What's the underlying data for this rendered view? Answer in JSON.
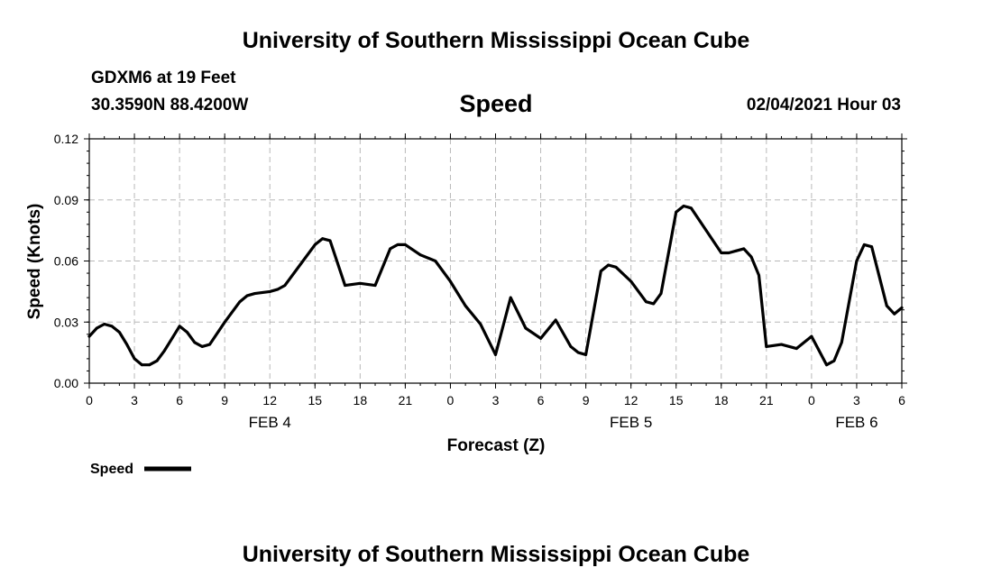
{
  "header": {
    "top_title": "University of Southern Mississippi Ocean Cube",
    "station": "GDXM6 at 19 Feet",
    "location": "30.3590N 88.4200W",
    "parameter": "Speed",
    "datetime": "02/04/2021 Hour 03"
  },
  "footer": {
    "bottom_title": "University of Southern Mississippi Ocean Cube"
  },
  "chart_data": {
    "type": "line",
    "ylabel": "Speed (Knots)",
    "xlabel": "Forecast (Z)",
    "ylim": [
      0,
      0.12
    ],
    "yticks": [
      "0.00",
      "0.03",
      "0.06",
      "0.09",
      "0.12"
    ],
    "xlim": [
      0,
      54
    ],
    "xticks": [
      {
        "hour": 0,
        "label": "0"
      },
      {
        "hour": 3,
        "label": "3"
      },
      {
        "hour": 6,
        "label": "6"
      },
      {
        "hour": 9,
        "label": "9"
      },
      {
        "hour": 12,
        "label": "12"
      },
      {
        "hour": 15,
        "label": "15"
      },
      {
        "hour": 18,
        "label": "18"
      },
      {
        "hour": 21,
        "label": "21"
      },
      {
        "hour": 24,
        "label": "0"
      },
      {
        "hour": 27,
        "label": "3"
      },
      {
        "hour": 30,
        "label": "6"
      },
      {
        "hour": 33,
        "label": "9"
      },
      {
        "hour": 36,
        "label": "12"
      },
      {
        "hour": 39,
        "label": "15"
      },
      {
        "hour": 42,
        "label": "18"
      },
      {
        "hour": 45,
        "label": "21"
      },
      {
        "hour": 48,
        "label": "0"
      },
      {
        "hour": 51,
        "label": "3"
      },
      {
        "hour": 54,
        "label": "6"
      }
    ],
    "date_labels": [
      {
        "hour": 12,
        "label": "FEB 4"
      },
      {
        "hour": 36,
        "label": "FEB 5"
      },
      {
        "hour": 51,
        "label": "FEB 6"
      }
    ],
    "grid": true,
    "legend": {
      "position": "bottom-left",
      "label": "Speed"
    },
    "series": [
      {
        "name": "Speed",
        "color": "#000000",
        "x": [
          0,
          0.5,
          1,
          1.5,
          2,
          2.5,
          3,
          3.5,
          4,
          4.5,
          5,
          5.5,
          6,
          6.5,
          7,
          7.5,
          8,
          9,
          10,
          10.5,
          11,
          12,
          12.5,
          13,
          14,
          15,
          15.5,
          16,
          17,
          18,
          19,
          20,
          20.5,
          21,
          22,
          23,
          24,
          25,
          26,
          27,
          28,
          29,
          30,
          31,
          32,
          32.5,
          33,
          34,
          34.5,
          35,
          36,
          37,
          37.5,
          38,
          39,
          39.5,
          40,
          41,
          42,
          42.5,
          43,
          43.5,
          44,
          44.5,
          45,
          46,
          47,
          48,
          49,
          49.5,
          50,
          50.5,
          51,
          51.5,
          52,
          53,
          53.5,
          54
        ],
        "values": [
          0.023,
          0.027,
          0.029,
          0.028,
          0.025,
          0.019,
          0.012,
          0.009,
          0.009,
          0.011,
          0.016,
          0.022,
          0.028,
          0.025,
          0.02,
          0.018,
          0.019,
          0.03,
          0.04,
          0.043,
          0.044,
          0.045,
          0.046,
          0.048,
          0.058,
          0.068,
          0.071,
          0.07,
          0.048,
          0.049,
          0.048,
          0.066,
          0.068,
          0.068,
          0.063,
          0.06,
          0.05,
          0.038,
          0.029,
          0.014,
          0.042,
          0.027,
          0.022,
          0.031,
          0.018,
          0.015,
          0.014,
          0.055,
          0.058,
          0.057,
          0.05,
          0.04,
          0.039,
          0.044,
          0.084,
          0.087,
          0.086,
          0.075,
          0.064,
          0.064,
          0.065,
          0.066,
          0.062,
          0.053,
          0.018,
          0.019,
          0.017,
          0.023,
          0.009,
          0.011,
          0.02,
          0.04,
          0.06,
          0.068,
          0.067,
          0.038,
          0.034,
          0.037
        ]
      }
    ]
  }
}
